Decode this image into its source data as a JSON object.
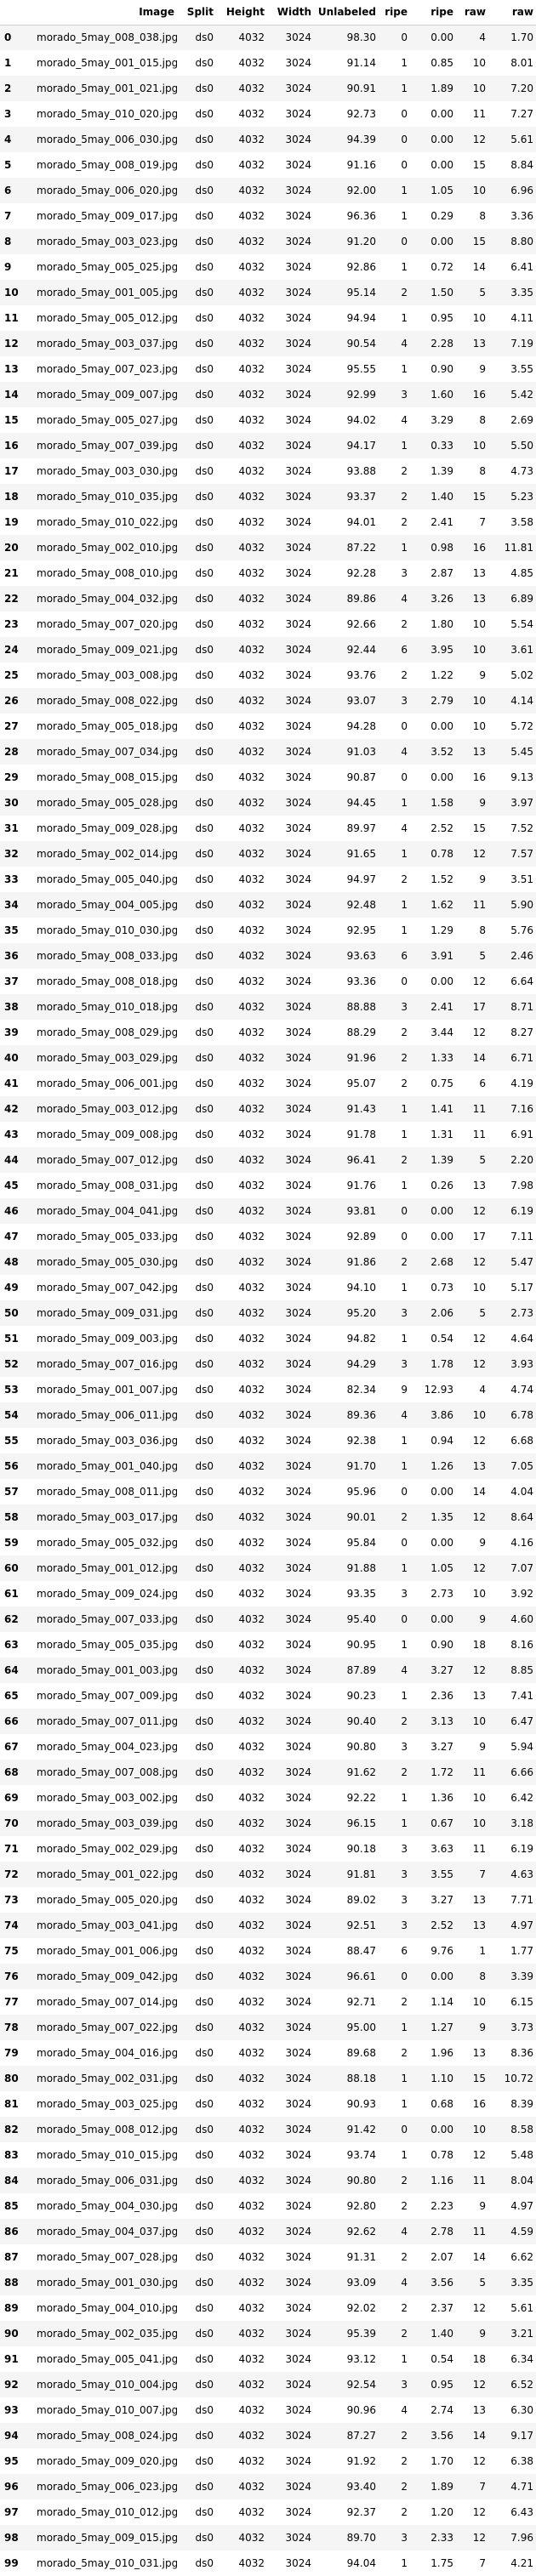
{
  "columns": [
    "",
    "Image",
    "Split",
    "Height",
    "Width",
    "Unlabeled",
    "ripe",
    "ripe",
    "raw",
    "raw"
  ],
  "rows": [
    [
      "0",
      "morado_5may_008_038.jpg",
      "ds0",
      "4032",
      "3024",
      "98.30",
      "0",
      "0.00",
      "4",
      "1.70"
    ],
    [
      "1",
      "morado_5may_001_015.jpg",
      "ds0",
      "4032",
      "3024",
      "91.14",
      "1",
      "0.85",
      "10",
      "8.01"
    ],
    [
      "2",
      "morado_5may_001_021.jpg",
      "ds0",
      "4032",
      "3024",
      "90.91",
      "1",
      "1.89",
      "10",
      "7.20"
    ],
    [
      "3",
      "morado_5may_010_020.jpg",
      "ds0",
      "4032",
      "3024",
      "92.73",
      "0",
      "0.00",
      "11",
      "7.27"
    ],
    [
      "4",
      "morado_5may_006_030.jpg",
      "ds0",
      "4032",
      "3024",
      "94.39",
      "0",
      "0.00",
      "12",
      "5.61"
    ],
    [
      "5",
      "morado_5may_008_019.jpg",
      "ds0",
      "4032",
      "3024",
      "91.16",
      "0",
      "0.00",
      "15",
      "8.84"
    ],
    [
      "6",
      "morado_5may_006_020.jpg",
      "ds0",
      "4032",
      "3024",
      "92.00",
      "1",
      "1.05",
      "10",
      "6.96"
    ],
    [
      "7",
      "morado_5may_009_017.jpg",
      "ds0",
      "4032",
      "3024",
      "96.36",
      "1",
      "0.29",
      "8",
      "3.36"
    ],
    [
      "8",
      "morado_5may_003_023.jpg",
      "ds0",
      "4032",
      "3024",
      "91.20",
      "0",
      "0.00",
      "15",
      "8.80"
    ],
    [
      "9",
      "morado_5may_005_025.jpg",
      "ds0",
      "4032",
      "3024",
      "92.86",
      "1",
      "0.72",
      "14",
      "6.41"
    ],
    [
      "10",
      "morado_5may_001_005.jpg",
      "ds0",
      "4032",
      "3024",
      "95.14",
      "2",
      "1.50",
      "5",
      "3.35"
    ],
    [
      "11",
      "morado_5may_005_012.jpg",
      "ds0",
      "4032",
      "3024",
      "94.94",
      "1",
      "0.95",
      "10",
      "4.11"
    ],
    [
      "12",
      "morado_5may_003_037.jpg",
      "ds0",
      "4032",
      "3024",
      "90.54",
      "4",
      "2.28",
      "13",
      "7.19"
    ],
    [
      "13",
      "morado_5may_007_023.jpg",
      "ds0",
      "4032",
      "3024",
      "95.55",
      "1",
      "0.90",
      "9",
      "3.55"
    ],
    [
      "14",
      "morado_5may_009_007.jpg",
      "ds0",
      "4032",
      "3024",
      "92.99",
      "3",
      "1.60",
      "16",
      "5.42"
    ],
    [
      "15",
      "morado_5may_005_027.jpg",
      "ds0",
      "4032",
      "3024",
      "94.02",
      "4",
      "3.29",
      "8",
      "2.69"
    ],
    [
      "16",
      "morado_5may_007_039.jpg",
      "ds0",
      "4032",
      "3024",
      "94.17",
      "1",
      "0.33",
      "10",
      "5.50"
    ],
    [
      "17",
      "morado_5may_003_030.jpg",
      "ds0",
      "4032",
      "3024",
      "93.88",
      "2",
      "1.39",
      "8",
      "4.73"
    ],
    [
      "18",
      "morado_5may_010_035.jpg",
      "ds0",
      "4032",
      "3024",
      "93.37",
      "2",
      "1.40",
      "15",
      "5.23"
    ],
    [
      "19",
      "morado_5may_010_022.jpg",
      "ds0",
      "4032",
      "3024",
      "94.01",
      "2",
      "2.41",
      "7",
      "3.58"
    ],
    [
      "20",
      "morado_5may_002_010.jpg",
      "ds0",
      "4032",
      "3024",
      "87.22",
      "1",
      "0.98",
      "16",
      "11.81"
    ],
    [
      "21",
      "morado_5may_008_010.jpg",
      "ds0",
      "4032",
      "3024",
      "92.28",
      "3",
      "2.87",
      "13",
      "4.85"
    ],
    [
      "22",
      "morado_5may_004_032.jpg",
      "ds0",
      "4032",
      "3024",
      "89.86",
      "4",
      "3.26",
      "13",
      "6.89"
    ],
    [
      "23",
      "morado_5may_007_020.jpg",
      "ds0",
      "4032",
      "3024",
      "92.66",
      "2",
      "1.80",
      "10",
      "5.54"
    ],
    [
      "24",
      "morado_5may_009_021.jpg",
      "ds0",
      "4032",
      "3024",
      "92.44",
      "6",
      "3.95",
      "10",
      "3.61"
    ],
    [
      "25",
      "morado_5may_003_008.jpg",
      "ds0",
      "4032",
      "3024",
      "93.76",
      "2",
      "1.22",
      "9",
      "5.02"
    ],
    [
      "26",
      "morado_5may_008_022.jpg",
      "ds0",
      "4032",
      "3024",
      "93.07",
      "3",
      "2.79",
      "10",
      "4.14"
    ],
    [
      "27",
      "morado_5may_005_018.jpg",
      "ds0",
      "4032",
      "3024",
      "94.28",
      "0",
      "0.00",
      "10",
      "5.72"
    ],
    [
      "28",
      "morado_5may_007_034.jpg",
      "ds0",
      "4032",
      "3024",
      "91.03",
      "4",
      "3.52",
      "13",
      "5.45"
    ],
    [
      "29",
      "morado_5may_008_015.jpg",
      "ds0",
      "4032",
      "3024",
      "90.87",
      "0",
      "0.00",
      "16",
      "9.13"
    ],
    [
      "30",
      "morado_5may_005_028.jpg",
      "ds0",
      "4032",
      "3024",
      "94.45",
      "1",
      "1.58",
      "9",
      "3.97"
    ],
    [
      "31",
      "morado_5may_009_028.jpg",
      "ds0",
      "4032",
      "3024",
      "89.97",
      "4",
      "2.52",
      "15",
      "7.52"
    ],
    [
      "32",
      "morado_5may_002_014.jpg",
      "ds0",
      "4032",
      "3024",
      "91.65",
      "1",
      "0.78",
      "12",
      "7.57"
    ],
    [
      "33",
      "morado_5may_005_040.jpg",
      "ds0",
      "4032",
      "3024",
      "94.97",
      "2",
      "1.52",
      "9",
      "3.51"
    ],
    [
      "34",
      "morado_5may_004_005.jpg",
      "ds0",
      "4032",
      "3024",
      "92.48",
      "1",
      "1.62",
      "11",
      "5.90"
    ],
    [
      "35",
      "morado_5may_010_030.jpg",
      "ds0",
      "4032",
      "3024",
      "92.95",
      "1",
      "1.29",
      "8",
      "5.76"
    ],
    [
      "36",
      "morado_5may_008_033.jpg",
      "ds0",
      "4032",
      "3024",
      "93.63",
      "6",
      "3.91",
      "5",
      "2.46"
    ],
    [
      "37",
      "morado_5may_008_018.jpg",
      "ds0",
      "4032",
      "3024",
      "93.36",
      "0",
      "0.00",
      "12",
      "6.64"
    ],
    [
      "38",
      "morado_5may_010_018.jpg",
      "ds0",
      "4032",
      "3024",
      "88.88",
      "3",
      "2.41",
      "17",
      "8.71"
    ],
    [
      "39",
      "morado_5may_008_029.jpg",
      "ds0",
      "4032",
      "3024",
      "88.29",
      "2",
      "3.44",
      "12",
      "8.27"
    ],
    [
      "40",
      "morado_5may_003_029.jpg",
      "ds0",
      "4032",
      "3024",
      "91.96",
      "2",
      "1.33",
      "14",
      "6.71"
    ],
    [
      "41",
      "morado_5may_006_001.jpg",
      "ds0",
      "4032",
      "3024",
      "95.07",
      "2",
      "0.75",
      "6",
      "4.19"
    ],
    [
      "42",
      "morado_5may_003_012.jpg",
      "ds0",
      "4032",
      "3024",
      "91.43",
      "1",
      "1.41",
      "11",
      "7.16"
    ],
    [
      "43",
      "morado_5may_009_008.jpg",
      "ds0",
      "4032",
      "3024",
      "91.78",
      "1",
      "1.31",
      "11",
      "6.91"
    ],
    [
      "44",
      "morado_5may_007_012.jpg",
      "ds0",
      "4032",
      "3024",
      "96.41",
      "2",
      "1.39",
      "5",
      "2.20"
    ],
    [
      "45",
      "morado_5may_008_031.jpg",
      "ds0",
      "4032",
      "3024",
      "91.76",
      "1",
      "0.26",
      "13",
      "7.98"
    ],
    [
      "46",
      "morado_5may_004_041.jpg",
      "ds0",
      "4032",
      "3024",
      "93.81",
      "0",
      "0.00",
      "12",
      "6.19"
    ],
    [
      "47",
      "morado_5may_005_033.jpg",
      "ds0",
      "4032",
      "3024",
      "92.89",
      "0",
      "0.00",
      "17",
      "7.11"
    ],
    [
      "48",
      "morado_5may_005_030.jpg",
      "ds0",
      "4032",
      "3024",
      "91.86",
      "2",
      "2.68",
      "12",
      "5.47"
    ],
    [
      "49",
      "morado_5may_007_042.jpg",
      "ds0",
      "4032",
      "3024",
      "94.10",
      "1",
      "0.73",
      "10",
      "5.17"
    ],
    [
      "50",
      "morado_5may_009_031.jpg",
      "ds0",
      "4032",
      "3024",
      "95.20",
      "3",
      "2.06",
      "5",
      "2.73"
    ],
    [
      "51",
      "morado_5may_009_003.jpg",
      "ds0",
      "4032",
      "3024",
      "94.82",
      "1",
      "0.54",
      "12",
      "4.64"
    ],
    [
      "52",
      "morado_5may_007_016.jpg",
      "ds0",
      "4032",
      "3024",
      "94.29",
      "3",
      "1.78",
      "12",
      "3.93"
    ],
    [
      "53",
      "morado_5may_001_007.jpg",
      "ds0",
      "4032",
      "3024",
      "82.34",
      "9",
      "12.93",
      "4",
      "4.74"
    ],
    [
      "54",
      "morado_5may_006_011.jpg",
      "ds0",
      "4032",
      "3024",
      "89.36",
      "4",
      "3.86",
      "10",
      "6.78"
    ],
    [
      "55",
      "morado_5may_003_036.jpg",
      "ds0",
      "4032",
      "3024",
      "92.38",
      "1",
      "0.94",
      "12",
      "6.68"
    ],
    [
      "56",
      "morado_5may_001_040.jpg",
      "ds0",
      "4032",
      "3024",
      "91.70",
      "1",
      "1.26",
      "13",
      "7.05"
    ],
    [
      "57",
      "morado_5may_008_011.jpg",
      "ds0",
      "4032",
      "3024",
      "95.96",
      "0",
      "0.00",
      "14",
      "4.04"
    ],
    [
      "58",
      "morado_5may_003_017.jpg",
      "ds0",
      "4032",
      "3024",
      "90.01",
      "2",
      "1.35",
      "12",
      "8.64"
    ],
    [
      "59",
      "morado_5may_005_032.jpg",
      "ds0",
      "4032",
      "3024",
      "95.84",
      "0",
      "0.00",
      "9",
      "4.16"
    ],
    [
      "60",
      "morado_5may_001_012.jpg",
      "ds0",
      "4032",
      "3024",
      "91.88",
      "1",
      "1.05",
      "12",
      "7.07"
    ],
    [
      "61",
      "morado_5may_009_024.jpg",
      "ds0",
      "4032",
      "3024",
      "93.35",
      "3",
      "2.73",
      "10",
      "3.92"
    ],
    [
      "62",
      "morado_5may_007_033.jpg",
      "ds0",
      "4032",
      "3024",
      "95.40",
      "0",
      "0.00",
      "9",
      "4.60"
    ],
    [
      "63",
      "morado_5may_005_035.jpg",
      "ds0",
      "4032",
      "3024",
      "90.95",
      "1",
      "0.90",
      "18",
      "8.16"
    ],
    [
      "64",
      "morado_5may_001_003.jpg",
      "ds0",
      "4032",
      "3024",
      "87.89",
      "4",
      "3.27",
      "12",
      "8.85"
    ],
    [
      "65",
      "morado_5may_007_009.jpg",
      "ds0",
      "4032",
      "3024",
      "90.23",
      "1",
      "2.36",
      "13",
      "7.41"
    ],
    [
      "66",
      "morado_5may_007_011.jpg",
      "ds0",
      "4032",
      "3024",
      "90.40",
      "2",
      "3.13",
      "10",
      "6.47"
    ],
    [
      "67",
      "morado_5may_004_023.jpg",
      "ds0",
      "4032",
      "3024",
      "90.80",
      "3",
      "3.27",
      "9",
      "5.94"
    ],
    [
      "68",
      "morado_5may_007_008.jpg",
      "ds0",
      "4032",
      "3024",
      "91.62",
      "2",
      "1.72",
      "11",
      "6.66"
    ],
    [
      "69",
      "morado_5may_003_002.jpg",
      "ds0",
      "4032",
      "3024",
      "92.22",
      "1",
      "1.36",
      "10",
      "6.42"
    ],
    [
      "70",
      "morado_5may_003_039.jpg",
      "ds0",
      "4032",
      "3024",
      "96.15",
      "1",
      "0.67",
      "10",
      "3.18"
    ],
    [
      "71",
      "morado_5may_002_029.jpg",
      "ds0",
      "4032",
      "3024",
      "90.18",
      "3",
      "3.63",
      "11",
      "6.19"
    ],
    [
      "72",
      "morado_5may_001_022.jpg",
      "ds0",
      "4032",
      "3024",
      "91.81",
      "3",
      "3.55",
      "7",
      "4.63"
    ],
    [
      "73",
      "morado_5may_005_020.jpg",
      "ds0",
      "4032",
      "3024",
      "89.02",
      "3",
      "3.27",
      "13",
      "7.71"
    ],
    [
      "74",
      "morado_5may_003_041.jpg",
      "ds0",
      "4032",
      "3024",
      "92.51",
      "3",
      "2.52",
      "13",
      "4.97"
    ],
    [
      "75",
      "morado_5may_001_006.jpg",
      "ds0",
      "4032",
      "3024",
      "88.47",
      "6",
      "9.76",
      "1",
      "1.77"
    ],
    [
      "76",
      "morado_5may_009_042.jpg",
      "ds0",
      "4032",
      "3024",
      "96.61",
      "0",
      "0.00",
      "8",
      "3.39"
    ],
    [
      "77",
      "morado_5may_007_014.jpg",
      "ds0",
      "4032",
      "3024",
      "92.71",
      "2",
      "1.14",
      "10",
      "6.15"
    ],
    [
      "78",
      "morado_5may_007_022.jpg",
      "ds0",
      "4032",
      "3024",
      "95.00",
      "1",
      "1.27",
      "9",
      "3.73"
    ],
    [
      "79",
      "morado_5may_004_016.jpg",
      "ds0",
      "4032",
      "3024",
      "89.68",
      "2",
      "1.96",
      "13",
      "8.36"
    ],
    [
      "80",
      "morado_5may_002_031.jpg",
      "ds0",
      "4032",
      "3024",
      "88.18",
      "1",
      "1.10",
      "15",
      "10.72"
    ],
    [
      "81",
      "morado_5may_003_025.jpg",
      "ds0",
      "4032",
      "3024",
      "90.93",
      "1",
      "0.68",
      "16",
      "8.39"
    ],
    [
      "82",
      "morado_5may_008_012.jpg",
      "ds0",
      "4032",
      "3024",
      "91.42",
      "0",
      "0.00",
      "10",
      "8.58"
    ],
    [
      "83",
      "morado_5may_010_015.jpg",
      "ds0",
      "4032",
      "3024",
      "93.74",
      "1",
      "0.78",
      "12",
      "5.48"
    ],
    [
      "84",
      "morado_5may_006_031.jpg",
      "ds0",
      "4032",
      "3024",
      "90.80",
      "2",
      "1.16",
      "11",
      "8.04"
    ],
    [
      "85",
      "morado_5may_004_030.jpg",
      "ds0",
      "4032",
      "3024",
      "92.80",
      "2",
      "2.23",
      "9",
      "4.97"
    ],
    [
      "86",
      "morado_5may_004_037.jpg",
      "ds0",
      "4032",
      "3024",
      "92.62",
      "4",
      "2.78",
      "11",
      "4.59"
    ],
    [
      "87",
      "morado_5may_007_028.jpg",
      "ds0",
      "4032",
      "3024",
      "91.31",
      "2",
      "2.07",
      "14",
      "6.62"
    ],
    [
      "88",
      "morado_5may_001_030.jpg",
      "ds0",
      "4032",
      "3024",
      "93.09",
      "4",
      "3.56",
      "5",
      "3.35"
    ],
    [
      "89",
      "morado_5may_004_010.jpg",
      "ds0",
      "4032",
      "3024",
      "92.02",
      "2",
      "2.37",
      "12",
      "5.61"
    ],
    [
      "90",
      "morado_5may_002_035.jpg",
      "ds0",
      "4032",
      "3024",
      "95.39",
      "2",
      "1.40",
      "9",
      "3.21"
    ],
    [
      "91",
      "morado_5may_005_041.jpg",
      "ds0",
      "4032",
      "3024",
      "93.12",
      "1",
      "0.54",
      "18",
      "6.34"
    ],
    [
      "92",
      "morado_5may_010_004.jpg",
      "ds0",
      "4032",
      "3024",
      "92.54",
      "3",
      "0.95",
      "12",
      "6.52"
    ],
    [
      "93",
      "morado_5may_010_007.jpg",
      "ds0",
      "4032",
      "3024",
      "90.96",
      "4",
      "2.74",
      "13",
      "6.30"
    ],
    [
      "94",
      "morado_5may_008_024.jpg",
      "ds0",
      "4032",
      "3024",
      "87.27",
      "2",
      "3.56",
      "14",
      "9.17"
    ],
    [
      "95",
      "morado_5may_009_020.jpg",
      "ds0",
      "4032",
      "3024",
      "91.92",
      "2",
      "1.70",
      "12",
      "6.38"
    ],
    [
      "96",
      "morado_5may_006_023.jpg",
      "ds0",
      "4032",
      "3024",
      "93.40",
      "2",
      "1.89",
      "7",
      "4.71"
    ],
    [
      "97",
      "morado_5may_010_012.jpg",
      "ds0",
      "4032",
      "3024",
      "92.37",
      "2",
      "1.20",
      "12",
      "6.43"
    ],
    [
      "98",
      "morado_5may_009_015.jpg",
      "ds0",
      "4032",
      "3024",
      "89.70",
      "3",
      "2.33",
      "12",
      "7.96"
    ],
    [
      "99",
      "morado_5may_010_031.jpg",
      "ds0",
      "4032",
      "3024",
      "94.04",
      "1",
      "1.75",
      "7",
      "4.21"
    ]
  ]
}
